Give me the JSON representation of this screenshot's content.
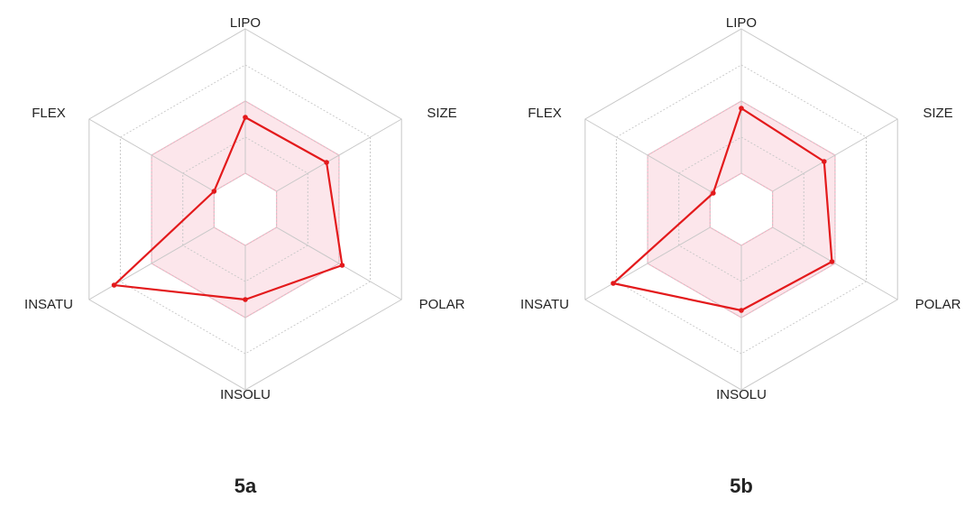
{
  "chart_data": [
    {
      "type": "radar",
      "title": "5a",
      "categories": [
        "LIPO",
        "SIZE",
        "POLAR",
        "INSOLU",
        "INSATU",
        "FLEX"
      ],
      "values": [
        2.55,
        2.6,
        3.1,
        2.5,
        4.2,
        1.0
      ],
      "color": "#e31a1c",
      "band": [
        1,
        3
      ],
      "band_color": "#f7b6c6",
      "rlim": [
        0,
        5
      ],
      "rticks": [
        1,
        2,
        3,
        4,
        5
      ],
      "grid": true
    },
    {
      "type": "radar",
      "title": "5b",
      "categories": [
        "LIPO",
        "SIZE",
        "POLAR",
        "INSOLU",
        "INSATU",
        "FLEX"
      ],
      "values": [
        2.8,
        2.65,
        2.9,
        2.8,
        4.1,
        0.9
      ],
      "color": "#e31a1c",
      "band": [
        1,
        3
      ],
      "band_color": "#f7b6c6",
      "rlim": [
        0,
        5
      ],
      "rticks": [
        1,
        2,
        3,
        4,
        5
      ],
      "grid": true
    }
  ]
}
